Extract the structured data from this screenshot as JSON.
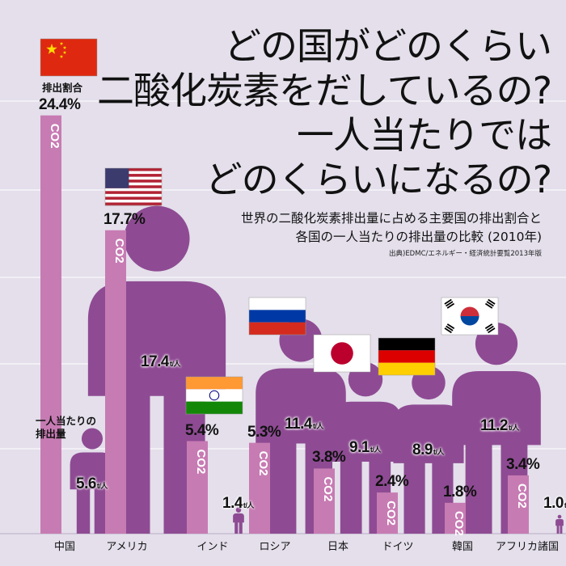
{
  "title": {
    "line1": "どの国がどのくらい",
    "line2": "二酸化炭素をだしているの?",
    "line3": "一人当たりでは",
    "line4": "どのくらいになるの?"
  },
  "subtitle": {
    "line1": "世界の二酸化炭素排出量に占める主要国の排出割合と",
    "line2": "各国の一人当たりの排出量の比較 (2010年)"
  },
  "source": "出典)EDMC/エネルギー・経済統計要覧2013年版",
  "captions": {
    "share": "排出割合",
    "per_capita_line1": "一人当たりの",
    "per_capita_line2": "排出量",
    "co2_glyph": "CO2",
    "per_capita_unit": "t/人"
  },
  "colors": {
    "background": "#e4dfeb",
    "gridline": "#ffffff",
    "bar_share": "#c77bb3",
    "person": "#8e4b93"
  },
  "chart_data": {
    "type": "bar",
    "categories": [
      "中国",
      "アメリカ",
      "インド",
      "ロシア",
      "日本",
      "ドイツ",
      "韓国",
      "アフリカ諸国"
    ],
    "series": [
      {
        "name": "排出割合",
        "unit": "%",
        "values": [
          24.4,
          17.7,
          5.4,
          5.3,
          3.8,
          2.4,
          1.8,
          3.4
        ],
        "labels": [
          "24.4%",
          "17.7%",
          "5.4%",
          "5.3%",
          "3.8%",
          "2.4%",
          "1.8%",
          "3.4%"
        ]
      },
      {
        "name": "一人当たりの排出量",
        "unit": "t/人",
        "values": [
          5.6,
          17.4,
          1.4,
          11.4,
          9.1,
          8.9,
          11.2,
          1.0
        ],
        "labels": [
          "5.6",
          "17.4",
          "1.4",
          "11.4",
          "9.1",
          "8.9",
          "11.2",
          "1.0"
        ]
      }
    ],
    "flags": [
      "china-flag",
      "usa-flag",
      "india-flag",
      "russia-flag",
      "japan-flag",
      "germany-flag",
      "korea-flag",
      ""
    ],
    "grid": true
  }
}
